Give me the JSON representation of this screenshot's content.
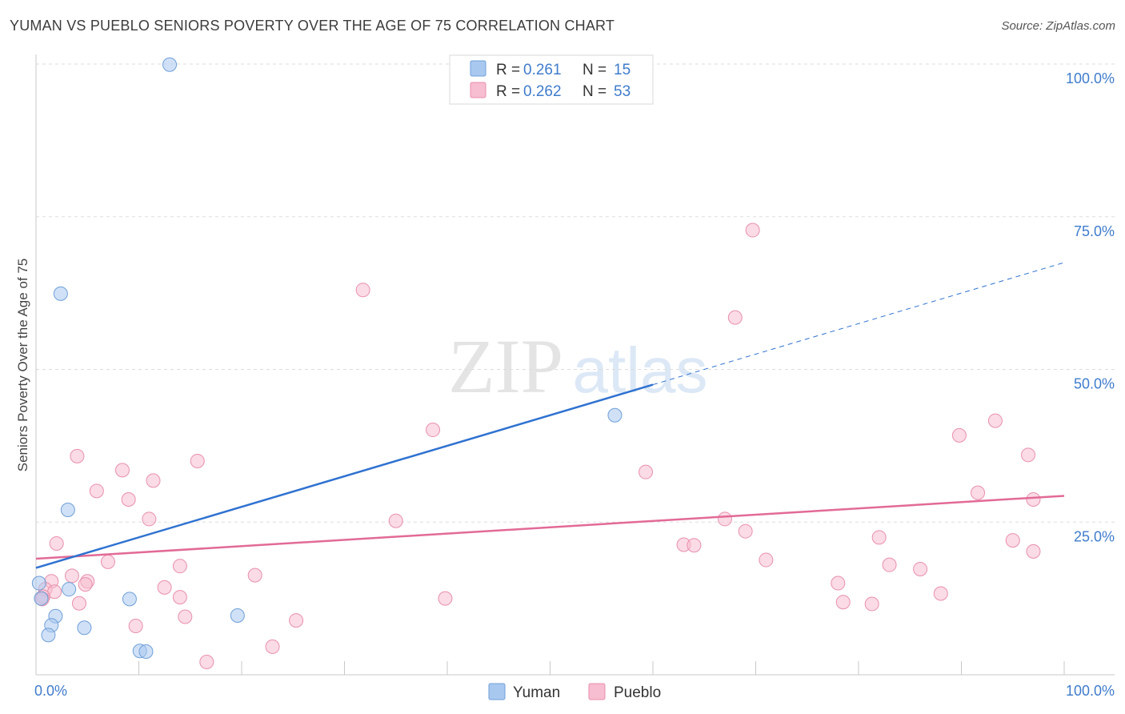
{
  "title": "YUMAN VS PUEBLO SENIORS POVERTY OVER THE AGE OF 75 CORRELATION CHART",
  "source": "Source: ZipAtlas.com",
  "watermark": {
    "zip": "ZIP",
    "atlas": "atlas"
  },
  "colors": {
    "yuman_fill": "#a9c8f0",
    "yuman_stroke": "#6f9fd8",
    "yuman_line": "#2f72d0",
    "pueblo_fill": "#f7bdd0",
    "pueblo_stroke": "#e890ad",
    "pueblo_line": "#e26a96",
    "value_text": "#3f7ccc",
    "grid": "#dddddd"
  },
  "legend": {
    "r_label": "R = ",
    "n_label": "N = ",
    "rows": [
      {
        "series": "yuman",
        "r": "0.261",
        "n": "15"
      },
      {
        "series": "pueblo",
        "r": "0.262",
        "n": "53"
      }
    ]
  },
  "chart_data": {
    "type": "scatter",
    "xlabel": "",
    "ylabel": "Seniors Poverty Over the Age of 75",
    "xlim": [
      0,
      100
    ],
    "ylim": [
      0,
      100
    ],
    "x_tick_labels": [
      "0.0%",
      "100.0%"
    ],
    "y_ticks": [
      {
        "value": 100,
        "label": "100.0%"
      },
      {
        "value": 75,
        "label": "75.0%"
      },
      {
        "value": 50,
        "label": "50.0%"
      },
      {
        "value": 25,
        "label": "25.0%"
      }
    ],
    "bottom_legend": [
      "Yuman",
      "Pueblo"
    ],
    "series": [
      {
        "name": "Yuman",
        "key": "yuman",
        "points": [
          [
            13,
            99.9
          ],
          [
            2.4,
            62.4
          ],
          [
            56.3,
            42.5
          ],
          [
            3.1,
            27.0
          ],
          [
            0.3,
            15.0
          ],
          [
            3.2,
            14.0
          ],
          [
            0.5,
            12.5
          ],
          [
            9.1,
            12.4
          ],
          [
            1.9,
            9.6
          ],
          [
            19.6,
            9.7
          ],
          [
            1.5,
            8.1
          ],
          [
            4.7,
            7.7
          ],
          [
            1.2,
            6.5
          ],
          [
            10.1,
            3.9
          ],
          [
            10.7,
            3.8
          ]
        ],
        "trend": {
          "x0": 0,
          "y0": 17.5,
          "x1": 60,
          "y1": 47.5,
          "dash_to_x": 100,
          "dash_to_y": 67.5
        }
      },
      {
        "name": "Pueblo",
        "key": "pueblo",
        "points": [
          [
            69.7,
            72.8
          ],
          [
            31.8,
            63.0
          ],
          [
            68.0,
            58.5
          ],
          [
            38.6,
            40.1
          ],
          [
            93.3,
            41.6
          ],
          [
            89.8,
            39.2
          ],
          [
            96.5,
            36.0
          ],
          [
            4.0,
            35.8
          ],
          [
            15.7,
            35.0
          ],
          [
            8.4,
            33.5
          ],
          [
            11.4,
            31.8
          ],
          [
            59.3,
            33.2
          ],
          [
            5.9,
            30.1
          ],
          [
            91.6,
            29.8
          ],
          [
            9.0,
            28.7
          ],
          [
            97.0,
            28.7
          ],
          [
            11.0,
            25.5
          ],
          [
            35.0,
            25.2
          ],
          [
            67.0,
            25.5
          ],
          [
            69.0,
            23.5
          ],
          [
            2.0,
            21.5
          ],
          [
            63.0,
            21.3
          ],
          [
            64.0,
            21.2
          ],
          [
            82.0,
            22.5
          ],
          [
            95.0,
            22.0
          ],
          [
            97.0,
            20.2
          ],
          [
            7.0,
            18.5
          ],
          [
            71.0,
            18.8
          ],
          [
            83.0,
            18.0
          ],
          [
            86.0,
            17.3
          ],
          [
            14.0,
            17.8
          ],
          [
            21.3,
            16.3
          ],
          [
            3.5,
            16.2
          ],
          [
            1.5,
            15.3
          ],
          [
            5.0,
            15.3
          ],
          [
            4.8,
            14.8
          ],
          [
            0.9,
            14.0
          ],
          [
            12.5,
            14.3
          ],
          [
            1.8,
            13.6
          ],
          [
            78.0,
            15.0
          ],
          [
            88.0,
            13.3
          ],
          [
            0.7,
            12.8
          ],
          [
            14.0,
            12.7
          ],
          [
            0.6,
            12.4
          ],
          [
            4.2,
            11.7
          ],
          [
            39.8,
            12.5
          ],
          [
            78.5,
            11.9
          ],
          [
            81.3,
            11.6
          ],
          [
            14.5,
            9.5
          ],
          [
            25.3,
            8.9
          ],
          [
            9.7,
            8.0
          ],
          [
            23.0,
            4.6
          ],
          [
            16.6,
            2.1
          ]
        ],
        "trend": {
          "x0": 0,
          "y0": 19.0,
          "x1": 100,
          "y1": 29.3
        }
      }
    ]
  }
}
